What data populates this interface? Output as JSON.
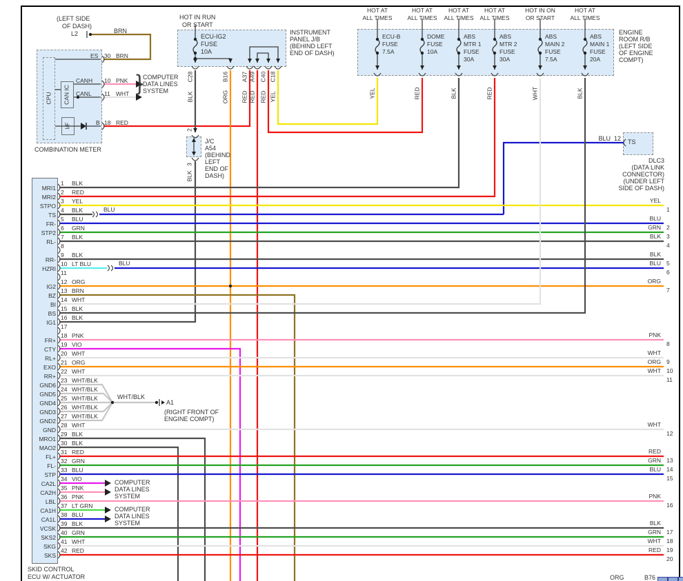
{
  "colors": {
    "BLK": "#4d4d4d",
    "RED": "#ee1411",
    "YEL": "#f5e400",
    "BLU": "#1616d0",
    "GRN": "#23a323",
    "ORG": "#ff8e00",
    "BRN": "#8f7120",
    "PNK": "#ff91b8",
    "WHT": "#e2e2e2",
    "VIO": "#e819e8",
    "LT BLU": "#57eeee",
    "LT GRN": "#44e044",
    "WHT/BLK": "#c6c6c6",
    "LINE": "#3d3d3d"
  },
  "combination_meter": {
    "title": "COMBINATION METER",
    "cpu_label": "CPU",
    "can_ic_label": "CAN IC",
    "if_label": "I/F",
    "brace": "}",
    "l2": {
      "location": [
        "(LEFT SIDE",
        "OF DASH)"
      ],
      "id": "L2",
      "wire_color": "BRN"
    },
    "pins": [
      {
        "name": "ES",
        "num": "30",
        "color": "BRN"
      },
      {
        "name": "CANH",
        "num": "10",
        "color": "PNK"
      },
      {
        "name": "CANL",
        "num": "11",
        "color": "WHT"
      },
      {
        "name": "B",
        "num": "18",
        "color": "RED"
      }
    ],
    "data_lines_note": [
      "COMPUTER",
      "DATA LINES",
      "SYSTEM"
    ]
  },
  "instrument_panel_jb": {
    "power_label": [
      "HOT IN RUN",
      "OR START"
    ],
    "fuse": [
      "ECU-IG2",
      "FUSE",
      "10A"
    ],
    "note": [
      "INSTRUMENT",
      "PANEL J/B",
      "(BEHIND LEFT",
      "END OF DASH)"
    ],
    "connectors": [
      {
        "id": "C28",
        "color": "BLK"
      },
      {
        "id": "B16",
        "color": "ORG"
      },
      {
        "id": "A37",
        "color": "RED"
      },
      {
        "id": "A49",
        "color": "RED"
      },
      {
        "id": "C40",
        "color": "RED"
      },
      {
        "id": "C18",
        "color": "YEL"
      }
    ]
  },
  "junction_connector": {
    "note": [
      "J/C",
      "A54",
      "(BEHIND",
      "LEFT",
      "END OF",
      "DASH)"
    ],
    "pin_top": "2",
    "pin_bottom": "3",
    "wire_color": "BLK"
  },
  "engine_room_rb": {
    "note": [
      "ENGINE",
      "ROOM R/B",
      "(LEFT SIDE",
      "OF ENGINE",
      "COMPT)"
    ],
    "fuses": [
      {
        "power": [
          "HOT AT",
          "ALL TIMES"
        ],
        "label": [
          "ECU-B",
          "FUSE",
          "7.5A"
        ],
        "wire_color": "YEL"
      },
      {
        "power": [
          "HOT AT",
          "ALL TIMES"
        ],
        "label": [
          "DOME",
          "FUSE",
          "10A"
        ],
        "wire_color": "RED"
      },
      {
        "power": [
          "HOT AT",
          "ALL TIMES"
        ],
        "label": [
          "ABS",
          "MTR 1",
          "FUSE",
          "30A"
        ],
        "wire_color": "BLK"
      },
      {
        "power": [
          "HOT AT",
          "ALL TIMES"
        ],
        "label": [
          "ABS",
          "MTR 2",
          "FUSE",
          "30A"
        ],
        "wire_color": "RED"
      },
      {
        "power": [
          "HOT IN ON",
          "OR START"
        ],
        "label": [
          "ABS",
          "MAIN 2",
          "FUSE",
          "7.5A"
        ],
        "wire_color": "WHT"
      },
      {
        "power": [
          "HOT AT",
          "ALL TIMES"
        ],
        "label": [
          "ABS",
          "MAIN 1",
          "FUSE",
          "20A"
        ],
        "wire_color": "BLK"
      }
    ]
  },
  "dlc3": {
    "pin_label": "TS",
    "pin_num": "12",
    "wire_color": "BLU",
    "note": [
      "DLC3",
      "(DATA LINK",
      "CONNECTOR)",
      "(UNDER LEFT",
      "SIDE OF DASH)"
    ]
  },
  "ground": {
    "splice_label": "WHT/BLK",
    "id": "A1",
    "note": [
      "(RIGHT FRONT OF",
      "ENGINE COMPT)"
    ]
  },
  "ecu": {
    "title": [
      "SKID CONTROL",
      "ECU W/ ACTUATOR"
    ],
    "data_lines_note": [
      "COMPUTER",
      "DATA LINES",
      "SYSTEM"
    ],
    "pins": [
      {
        "num": "1",
        "name": "MRI1",
        "color": "BLK"
      },
      {
        "num": "2",
        "name": "MRI2",
        "color": "RED"
      },
      {
        "num": "3",
        "name": "STPO",
        "color": "YEL"
      },
      {
        "num": "4",
        "name": "TS",
        "color": "BLK",
        "splice_color": "BLU"
      },
      {
        "num": "5",
        "name": "FR-",
        "color": "BLU"
      },
      {
        "num": "6",
        "name": "STP2",
        "color": "GRN"
      },
      {
        "num": "7",
        "name": "RL-",
        "color": "BLK"
      },
      {
        "num": "8",
        "name": "",
        "color": ""
      },
      {
        "num": "9",
        "name": "RR-",
        "color": "BLK"
      },
      {
        "num": "10",
        "name": "HZRI",
        "color": "LT BLU",
        "splice_color": "BLU"
      },
      {
        "num": "11",
        "name": "",
        "color": ""
      },
      {
        "num": "12",
        "name": "IG2",
        "color": "ORG"
      },
      {
        "num": "13",
        "name": "BZ",
        "color": "BRN"
      },
      {
        "num": "14",
        "name": "BI",
        "color": "WHT"
      },
      {
        "num": "15",
        "name": "BS",
        "color": "BLK"
      },
      {
        "num": "16",
        "name": "IG1",
        "color": "BLK"
      },
      {
        "num": "17",
        "name": "",
        "color": ""
      },
      {
        "num": "18",
        "name": "FR+",
        "color": "PNK"
      },
      {
        "num": "19",
        "name": "CTY",
        "color": "VIO"
      },
      {
        "num": "20",
        "name": "RL+",
        "color": "WHT"
      },
      {
        "num": "21",
        "name": "EXO",
        "color": "ORG"
      },
      {
        "num": "22",
        "name": "RR+",
        "color": "WHT"
      },
      {
        "num": "23",
        "name": "GND6",
        "color": "WHT/BLK"
      },
      {
        "num": "24",
        "name": "GND5",
        "color": "WHT/BLK"
      },
      {
        "num": "25",
        "name": "GND4",
        "color": "WHT/BLK"
      },
      {
        "num": "26",
        "name": "GND3",
        "color": "WHT/BLK"
      },
      {
        "num": "27",
        "name": "GND2",
        "color": "WHT/BLK"
      },
      {
        "num": "28",
        "name": "GND",
        "color": "WHT"
      },
      {
        "num": "29",
        "name": "MRO1",
        "color": "BLK"
      },
      {
        "num": "30",
        "name": "MAO2",
        "color": "BLK"
      },
      {
        "num": "31",
        "name": "FL+",
        "color": "RED"
      },
      {
        "num": "32",
        "name": "FL-",
        "color": "GRN"
      },
      {
        "num": "33",
        "name": "STP",
        "color": "BLU"
      },
      {
        "num": "34",
        "name": "CA2L",
        "color": "VIO"
      },
      {
        "num": "35",
        "name": "CA2H",
        "color": "PNK"
      },
      {
        "num": "36",
        "name": "LBL",
        "color": "PNK"
      },
      {
        "num": "37",
        "name": "CA1H",
        "color": "LT GRN"
      },
      {
        "num": "38",
        "name": "CA1L",
        "color": "BLU"
      },
      {
        "num": "39",
        "name": "VCSK",
        "color": "BLK"
      },
      {
        "num": "40",
        "name": "SKS2",
        "color": "GRN"
      },
      {
        "num": "41",
        "name": "SKG",
        "color": "WHT"
      },
      {
        "num": "42",
        "name": "SKS",
        "color": "RED"
      }
    ]
  },
  "page_refs": [
    {
      "num": "1",
      "color": "YEL"
    },
    {
      "num": "2",
      "color": "BLU"
    },
    {
      "num": "3",
      "color": "GRN"
    },
    {
      "num": "4",
      "color": "BLK"
    },
    {
      "num": "5",
      "color": "BLK"
    },
    {
      "num": "6",
      "color": "BLU"
    },
    {
      "num": "7",
      "color": "ORG"
    },
    {
      "num": "8",
      "color": "PNK"
    },
    {
      "num": "9",
      "color": "WHT"
    },
    {
      "num": "10",
      "color": "ORG"
    },
    {
      "num": "11",
      "color": "WHT"
    },
    {
      "num": "12",
      "color": "WHT"
    },
    {
      "num": "13",
      "color": "RED"
    },
    {
      "num": "14",
      "color": "GRN"
    },
    {
      "num": "15",
      "color": "BLU"
    },
    {
      "num": "16",
      "color": "PNK"
    },
    {
      "num": "17",
      "color": "BLK"
    },
    {
      "num": "18",
      "color": "GRN"
    },
    {
      "num": "19",
      "color": "WHT"
    },
    {
      "num": "20",
      "color": "RED"
    }
  ],
  "bottom_right": {
    "org_label": "ORG",
    "ref_label": "B76"
  }
}
